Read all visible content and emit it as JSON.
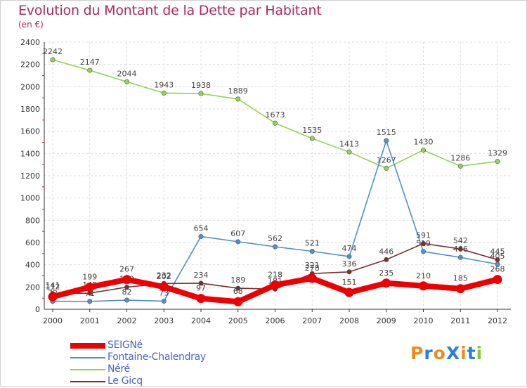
{
  "title": "Evolution du Montant de la Dette par Habitant",
  "unit_label": "(en €)",
  "logo": {
    "text": "ProXiti",
    "colors": [
      "#f08a1a",
      "#2b7fd6",
      "#f08a1a",
      "#2b7fd6",
      "#f08a1a",
      "#2b7fd6",
      "#88c43c"
    ]
  },
  "chart_data": {
    "type": "line",
    "title": "Evolution du Montant de la Dette par Habitant",
    "ylabel": "(en €)",
    "x": [
      "2000",
      "2001",
      "2002",
      "2003",
      "2004",
      "2005",
      "2006",
      "2007",
      "2008",
      "2009",
      "2010",
      "2011",
      "2012"
    ],
    "ylim": [
      0,
      2400
    ],
    "yticks": [
      "0",
      "200",
      "400",
      "600",
      "800",
      "1000",
      "1200",
      "1400",
      "1600",
      "1800",
      "2000",
      "2200",
      "2400"
    ],
    "grid": true,
    "legend_position": "bottom-left",
    "series": [
      {
        "name": "Néré",
        "color": "#8fd655",
        "values": [
          2242,
          2147,
          2044,
          1943,
          1938,
          1889,
          1673,
          1535,
          1413,
          1267,
          1430,
          1286,
          1329
        ]
      },
      {
        "name": "Fontaine-Chalendray",
        "color": "#4f90cf",
        "values": [
          72,
          71,
          82,
          73,
          654,
          607,
          562,
          521,
          474,
          1515,
          519,
          466,
          405
        ]
      },
      {
        "name": "Le Gicq",
        "color": "#7a2e2e",
        "values": [
          141,
          145,
          199,
          232,
          234,
          189,
          181,
          321,
          336,
          446,
          591,
          542,
          445
        ]
      },
      {
        "name": "SEIGNé",
        "color": "#ee0000",
        "values": [
          112,
          199,
          267,
          202,
          97,
          68,
          218,
          278,
          151,
          235,
          210,
          185,
          268
        ]
      }
    ]
  },
  "legend": [
    {
      "label": "SEIGNé",
      "color": "#ee0000",
      "width": 8
    },
    {
      "label": "Fontaine-Chalendray",
      "color": "#4f90cf",
      "width": 2
    },
    {
      "label": "Néré",
      "color": "#8fd655",
      "width": 2
    },
    {
      "label": "Le Gicq",
      "color": "#7a2e2e",
      "width": 2
    }
  ]
}
